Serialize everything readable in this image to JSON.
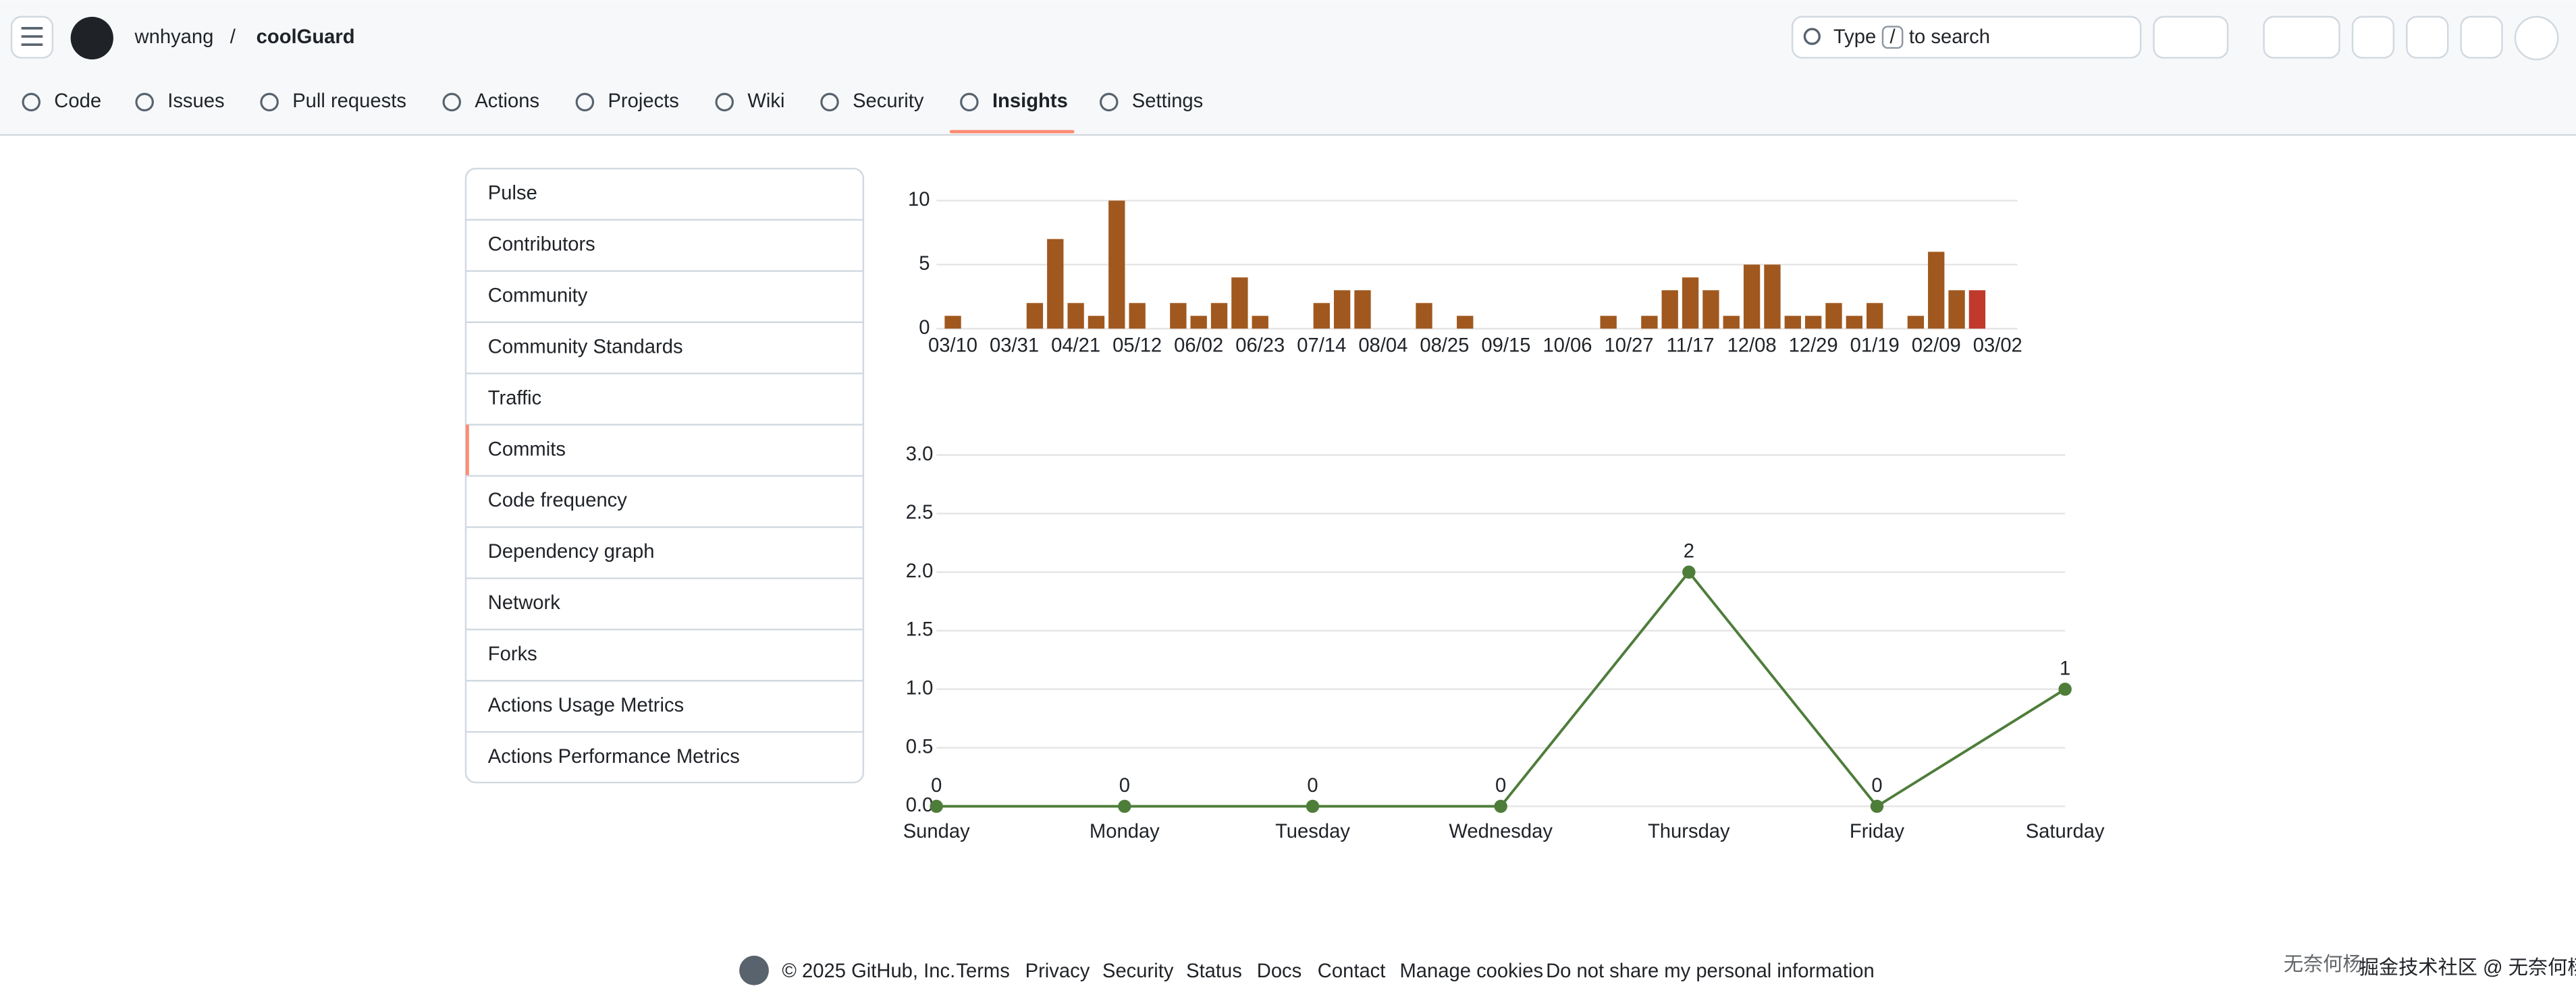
{
  "header": {
    "owner": "wnhyang",
    "separator": "/",
    "repo": "coolGuard",
    "search": {
      "prefix": "Type",
      "key": "/",
      "suffix": "to search"
    }
  },
  "tabs": [
    {
      "label": "Code"
    },
    {
      "label": "Issues"
    },
    {
      "label": "Pull requests"
    },
    {
      "label": "Actions"
    },
    {
      "label": "Projects"
    },
    {
      "label": "Wiki"
    },
    {
      "label": "Security"
    },
    {
      "label": "Insights",
      "selected": true
    },
    {
      "label": "Settings"
    }
  ],
  "sidebar": [
    {
      "label": "Pulse"
    },
    {
      "label": "Contributors"
    },
    {
      "label": "Community"
    },
    {
      "label": "Community Standards"
    },
    {
      "label": "Traffic"
    },
    {
      "label": "Commits",
      "selected": true
    },
    {
      "label": "Code frequency"
    },
    {
      "label": "Dependency graph"
    },
    {
      "label": "Network"
    },
    {
      "label": "Forks"
    },
    {
      "label": "Actions Usage Metrics"
    },
    {
      "label": "Actions Performance Metrics"
    }
  ],
  "chart_data": [
    {
      "type": "bar",
      "categories": [
        "03/10",
        null,
        null,
        "03/31",
        null,
        null,
        "04/21",
        null,
        null,
        "05/12",
        null,
        null,
        "06/02",
        null,
        null,
        "06/23",
        null,
        null,
        "07/14",
        null,
        null,
        "08/04",
        null,
        null,
        "08/25",
        null,
        null,
        "09/15",
        null,
        null,
        "10/06",
        null,
        null,
        "10/27",
        null,
        null,
        "11/17",
        null,
        null,
        "12/08",
        null,
        null,
        "12/29",
        null,
        null,
        "01/19",
        null,
        null,
        "02/09",
        null,
        null,
        "03/02"
      ],
      "values": [
        1,
        0,
        0,
        0,
        2,
        7,
        2,
        1,
        10,
        2,
        0,
        2,
        1,
        2,
        4,
        1,
        0,
        0,
        2,
        3,
        3,
        0,
        0,
        2,
        0,
        1,
        0,
        0,
        0,
        0,
        0,
        0,
        1,
        0,
        1,
        3,
        4,
        3,
        1,
        5,
        5,
        1,
        1,
        2,
        1,
        2,
        0,
        1,
        6,
        3,
        3,
        0
      ],
      "color": "#a0581e",
      "highlight": {
        "index": 50,
        "color": "#c0392b"
      },
      "ylim": [
        0,
        10
      ],
      "yticks": [
        0,
        5,
        10
      ],
      "grid": true
    },
    {
      "type": "line",
      "categories": [
        "Sunday",
        "Monday",
        "Tuesday",
        "Wednesday",
        "Thursday",
        "Friday",
        "Saturday"
      ],
      "values": [
        0,
        0,
        0,
        0,
        2,
        0,
        1
      ],
      "color": "#4e7d3a",
      "ylim": [
        0,
        3
      ],
      "yticks": [
        {
          "value": 0,
          "label": "0.0"
        },
        0.5,
        {
          "value": 1,
          "label": "1.0"
        },
        1.5,
        {
          "value": 2,
          "label": "2.0"
        },
        2.5,
        {
          "value": 3,
          "label": "3.0"
        }
      ],
      "grid": true
    }
  ],
  "footer": {
    "copyright": "© 2025 GitHub, Inc.",
    "links": [
      "Terms",
      "Privacy",
      "Security",
      "Status",
      "Docs",
      "Contact",
      "Manage cookies",
      "Do not share my personal information"
    ]
  },
  "watermark": {
    "big": "无奈何杨",
    "small": "掘金技术社区 @ 无奈何杨"
  }
}
